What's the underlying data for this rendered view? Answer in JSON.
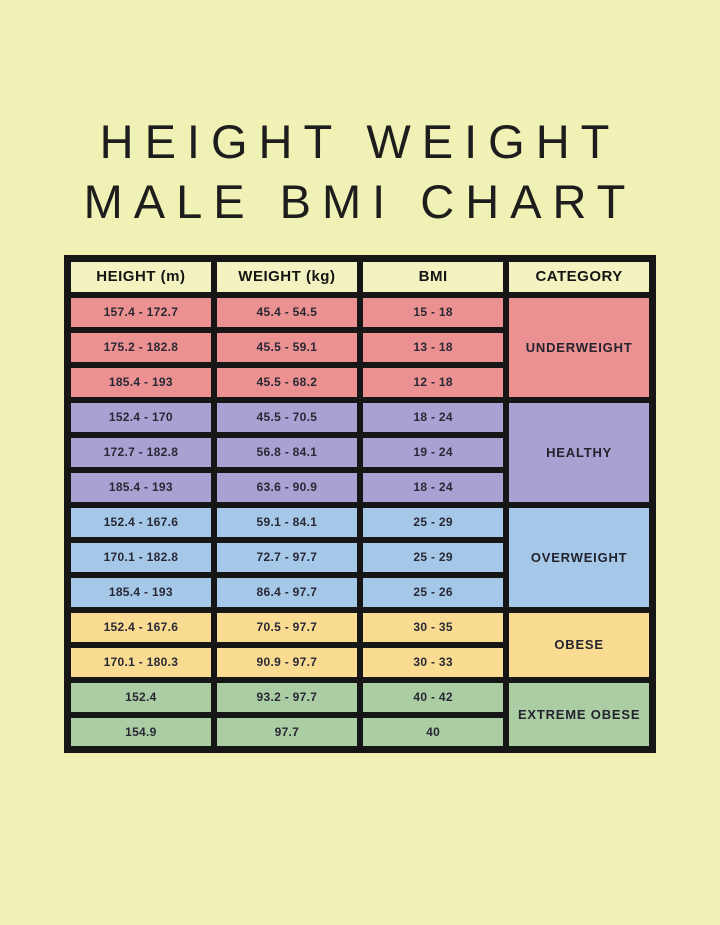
{
  "page": {
    "title_line1": "HEIGHT WEIGHT",
    "title_line2": "MALE BMI CHART"
  },
  "colors": {
    "page_bg": "#f0f1b5",
    "header_bg": "#f2f3c0",
    "border": "#161616",
    "underweight": "#ec9191",
    "healthy": "#a9a1d2",
    "overweight": "#a5c8e9",
    "obese": "#f9dc92",
    "extreme_obese": "#abcda3"
  },
  "chart_data": {
    "type": "table",
    "title": "HEIGHT WEIGHT MALE BMI CHART",
    "columns": [
      "HEIGHT (m)",
      "WEIGHT (kg)",
      "BMI",
      "CATEGORY"
    ],
    "rows": [
      [
        "157.4 - 172.7",
        "45.4 - 54.5",
        "15 - 18",
        "UNDERWEIGHT"
      ],
      [
        "175.2 - 182.8",
        "45.5 - 59.1",
        "13 - 18",
        "UNDERWEIGHT"
      ],
      [
        "185.4 - 193",
        "45.5 - 68.2",
        "12 - 18",
        "UNDERWEIGHT"
      ],
      [
        "152.4 - 170",
        "45.5 - 70.5",
        "18 - 24",
        "HEALTHY"
      ],
      [
        "172.7 - 182.8",
        "56.8 - 84.1",
        "19 - 24",
        "HEALTHY"
      ],
      [
        "185.4 - 193",
        "63.6 - 90.9",
        "18 - 24",
        "HEALTHY"
      ],
      [
        "152.4 - 167.6",
        "59.1 - 84.1",
        "25 - 29",
        "OVERWEIGHT"
      ],
      [
        "170.1 - 182.8",
        "72.7 - 97.7",
        "25 - 29",
        "OVERWEIGHT"
      ],
      [
        "185.4 - 193",
        "86.4 - 97.7",
        "25 - 26",
        "OVERWEIGHT"
      ],
      [
        "152.4 - 167.6",
        "70.5 - 97.7",
        "30 - 35",
        "OBESE"
      ],
      [
        "170.1 - 180.3",
        "90.9 - 97.7",
        "30 - 33",
        "OBESE"
      ],
      [
        "152.4",
        "93.2 - 97.7",
        "40 - 42",
        "EXTREME OBESE"
      ],
      [
        "154.9",
        "97.7",
        "40",
        "EXTREME OBESE"
      ]
    ],
    "sections": [
      {
        "category": "UNDERWEIGHT",
        "row_span": 3,
        "color_key": "underweight"
      },
      {
        "category": "HEALTHY",
        "row_span": 3,
        "color_key": "healthy"
      },
      {
        "category": "OVERWEIGHT",
        "row_span": 3,
        "color_key": "overweight"
      },
      {
        "category": "OBESE",
        "row_span": 2,
        "color_key": "obese"
      },
      {
        "category": "EXTREME OBESE",
        "row_span": 2,
        "color_key": "extreme_obese"
      }
    ]
  }
}
